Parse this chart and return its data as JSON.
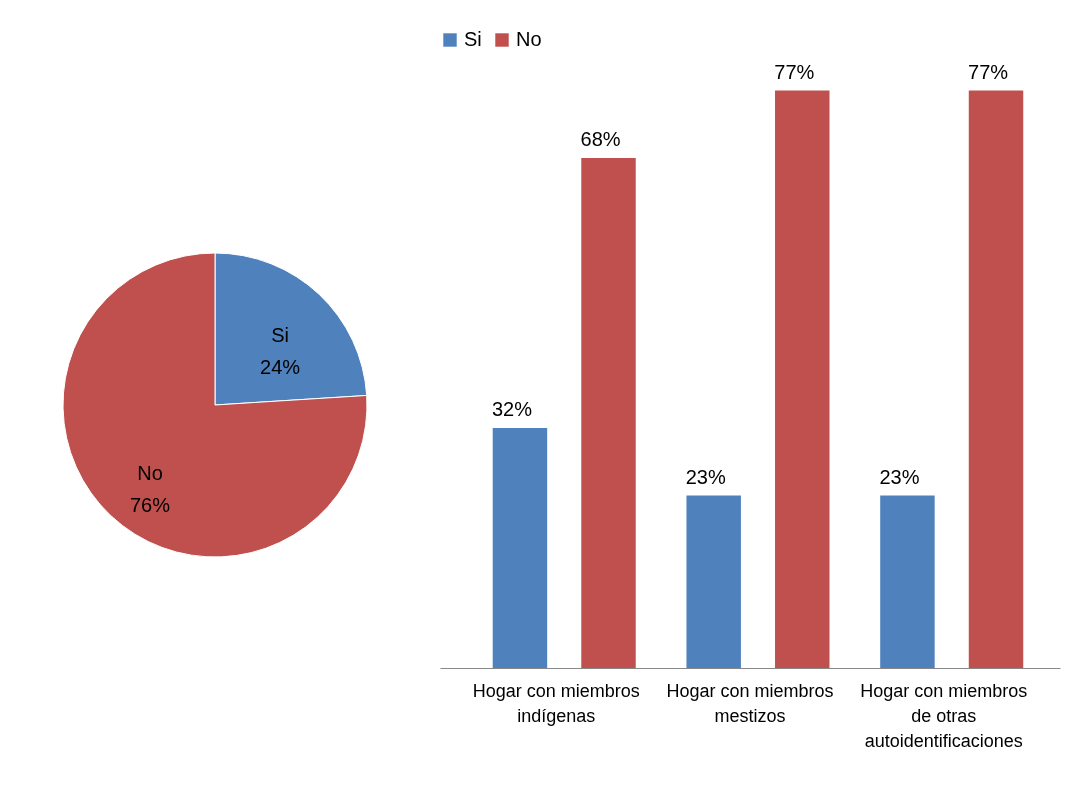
{
  "chart_data": [
    {
      "type": "pie",
      "categories": [
        "Si",
        "No"
      ],
      "values": [
        24,
        76
      ],
      "colors": [
        "#4f81bd",
        "#c0504d"
      ],
      "value_labels": [
        "24%",
        "76%"
      ],
      "legend": false
    },
    {
      "type": "bar",
      "categories": [
        "Hogar con miembros indígenas",
        "Hogar con miembros mestizos",
        "Hogar con miembros de otras autoidentificaciones"
      ],
      "series": [
        {
          "name": "Si",
          "color": "#4f81bd",
          "values": [
            32,
            23,
            23
          ],
          "value_labels": [
            "32%",
            "23%",
            "23%"
          ]
        },
        {
          "name": "No",
          "color": "#c0504d",
          "values": [
            68,
            77,
            77
          ],
          "value_labels": [
            "68%",
            "77%",
            "77%"
          ]
        }
      ],
      "legend": "top",
      "grid": false
    }
  ]
}
